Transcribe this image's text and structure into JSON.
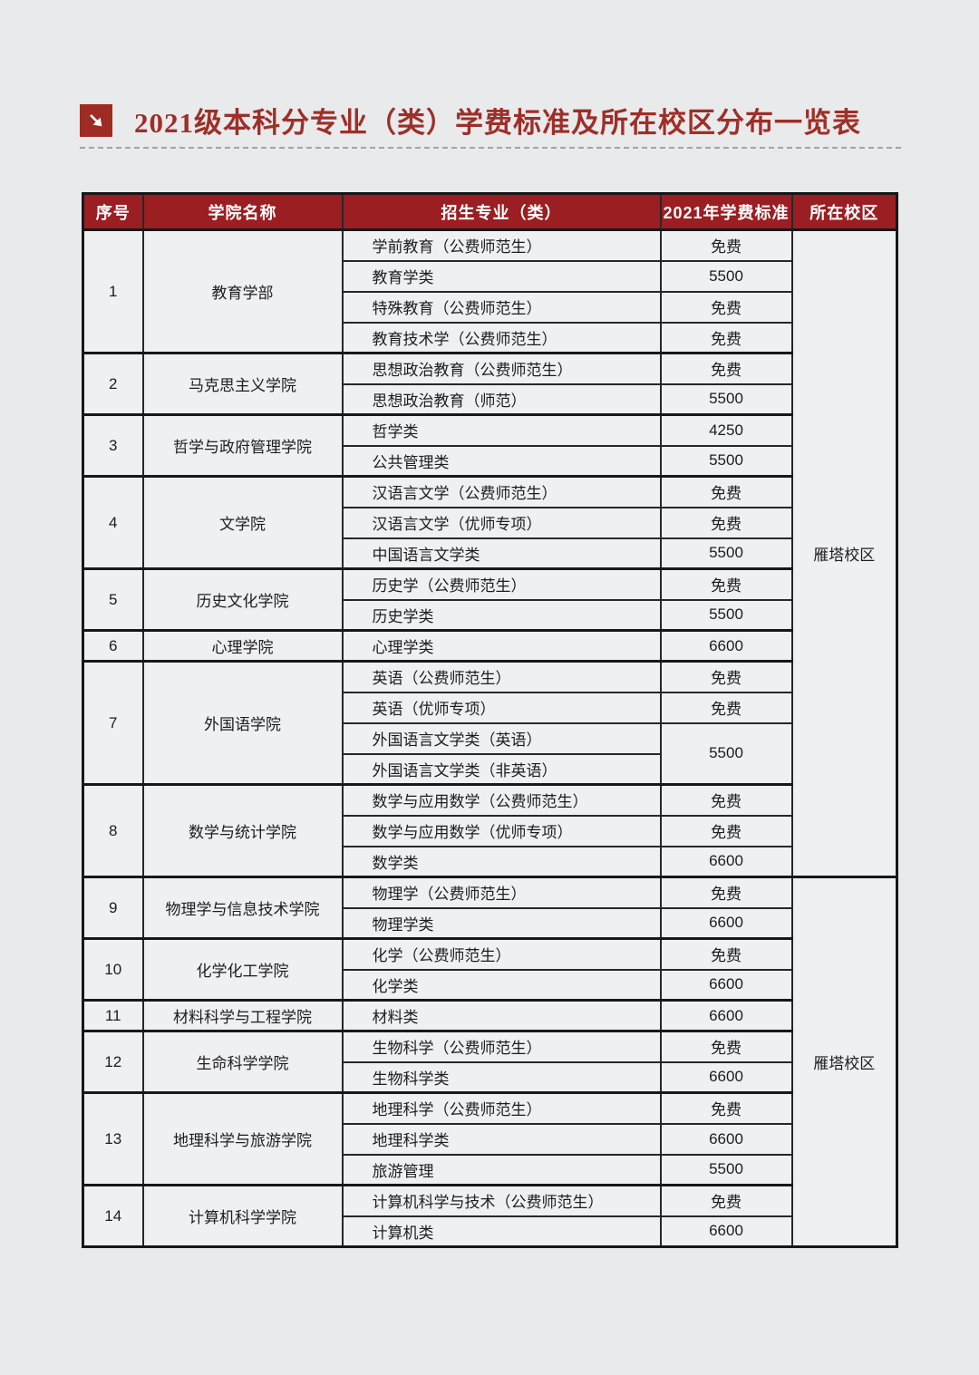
{
  "page": {
    "background": "#e9eaec"
  },
  "header": {
    "title": "2021级本科分专业（类）学费标准及所在校区分布一览表",
    "title_color": "#9e2f28",
    "icon": "arrow-down-right-icon",
    "icon_bg": "#9e2b24"
  },
  "table": {
    "header_bg": "#9b1e22",
    "columns": [
      "序号",
      "学院名称",
      "招生专业（类）",
      "2021年学费标准",
      "所在校区"
    ],
    "campus_groups": [
      {
        "label": "雁塔校区",
        "college_start": 1,
        "college_end": 8
      },
      {
        "label": "雁塔校区",
        "college_start": 9,
        "college_end": 14
      }
    ],
    "colleges": [
      {
        "no": "1",
        "name": "教育学部",
        "majors": [
          {
            "major": "学前教育（公费师范生）",
            "fee": "免费"
          },
          {
            "major": "教育学类",
            "fee": "5500"
          },
          {
            "major": "特殊教育（公费师范生）",
            "fee": "免费"
          },
          {
            "major": "教育技术学（公费师范生）",
            "fee": "免费"
          }
        ]
      },
      {
        "no": "2",
        "name": "马克思主义学院",
        "majors": [
          {
            "major": "思想政治教育（公费师范生）",
            "fee": "免费"
          },
          {
            "major": "思想政治教育（师范）",
            "fee": "5500"
          }
        ]
      },
      {
        "no": "3",
        "name": "哲学与政府管理学院",
        "majors": [
          {
            "major": "哲学类",
            "fee": "4250"
          },
          {
            "major": "公共管理类",
            "fee": "5500"
          }
        ]
      },
      {
        "no": "4",
        "name": "文学院",
        "majors": [
          {
            "major": "汉语言文学（公费师范生）",
            "fee": "免费"
          },
          {
            "major": "汉语言文学（优师专项）",
            "fee": "免费"
          },
          {
            "major": "中国语言文学类",
            "fee": "5500"
          }
        ]
      },
      {
        "no": "5",
        "name": "历史文化学院",
        "majors": [
          {
            "major": "历史学（公费师范生）",
            "fee": "免费"
          },
          {
            "major": "历史学类",
            "fee": "5500"
          }
        ]
      },
      {
        "no": "6",
        "name": "心理学院",
        "majors": [
          {
            "major": "心理学类",
            "fee": "6600"
          }
        ]
      },
      {
        "no": "7",
        "name": "外国语学院",
        "majors": [
          {
            "major": "英语（公费师范生）",
            "fee": "免费"
          },
          {
            "major": "英语（优师专项）",
            "fee": "免费"
          },
          {
            "major": "外国语言文学类（英语）",
            "fee": "5500",
            "fee_rowspan": 2
          },
          {
            "major": "外国语言文学类（非英语）",
            "fee": null
          }
        ]
      },
      {
        "no": "8",
        "name": "数学与统计学院",
        "majors": [
          {
            "major": "数学与应用数学（公费师范生）",
            "fee": "免费"
          },
          {
            "major": "数学与应用数学（优师专项）",
            "fee": "免费"
          },
          {
            "major": "数学类",
            "fee": "6600"
          }
        ]
      },
      {
        "no": "9",
        "name": "物理学与信息技术学院",
        "majors": [
          {
            "major": "物理学（公费师范生）",
            "fee": "免费"
          },
          {
            "major": "物理学类",
            "fee": "6600"
          }
        ]
      },
      {
        "no": "10",
        "name": "化学化工学院",
        "majors": [
          {
            "major": "化学（公费师范生）",
            "fee": "免费"
          },
          {
            "major": "化学类",
            "fee": "6600"
          }
        ]
      },
      {
        "no": "11",
        "name": "材料科学与工程学院",
        "majors": [
          {
            "major": "材料类",
            "fee": "6600"
          }
        ]
      },
      {
        "no": "12",
        "name": "生命科学学院",
        "majors": [
          {
            "major": "生物科学（公费师范生）",
            "fee": "免费"
          },
          {
            "major": "生物科学类",
            "fee": "6600"
          }
        ]
      },
      {
        "no": "13",
        "name": "地理科学与旅游学院",
        "majors": [
          {
            "major": "地理科学（公费师范生）",
            "fee": "免费"
          },
          {
            "major": "地理科学类",
            "fee": "6600"
          },
          {
            "major": "旅游管理",
            "fee": "5500"
          }
        ]
      },
      {
        "no": "14",
        "name": "计算机科学学院",
        "majors": [
          {
            "major": "计算机科学与技术（公费师范生）",
            "fee": "免费"
          },
          {
            "major": "计算机类",
            "fee": "6600"
          }
        ]
      }
    ]
  }
}
